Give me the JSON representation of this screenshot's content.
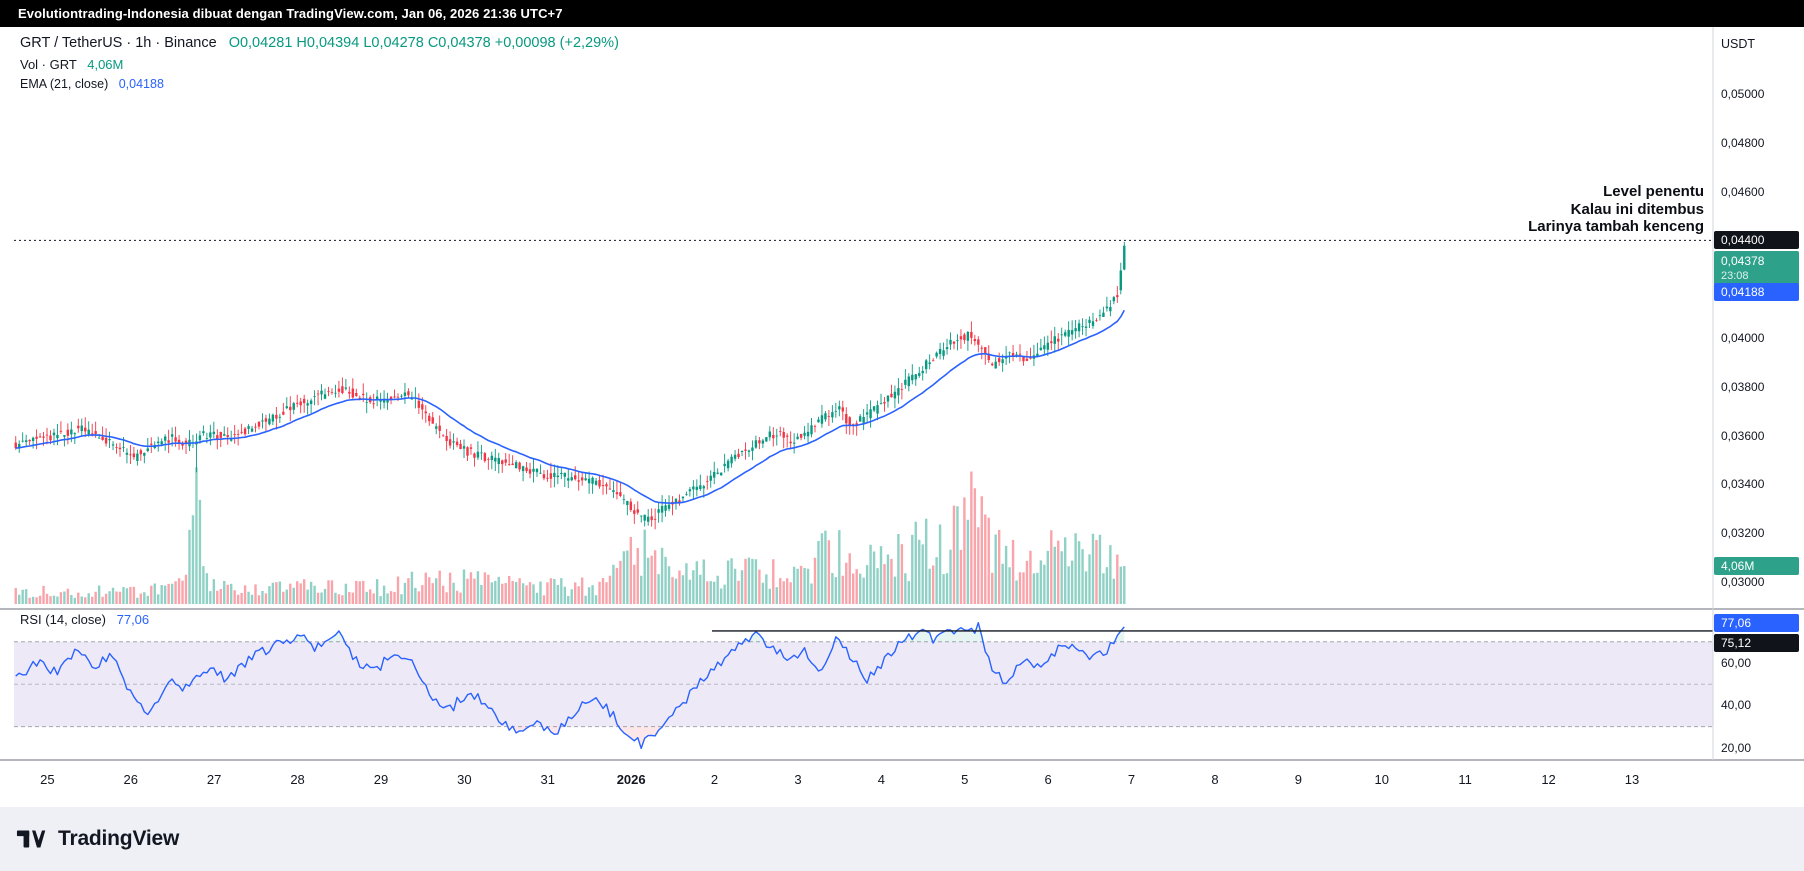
{
  "top_bar": {
    "text": "Evolutiontrading-Indonesia dibuat dengan TradingView.com, Jan 06, 2026 21:36 UTC+7"
  },
  "legend": {
    "symbol": "GRT / TetherUS · 1h · Binance",
    "ohlc": "O0,04281  H0,04394  L0,04278  C0,04378  +0,00098 (+2,29%)",
    "volume_label": "Vol · GRT",
    "volume_value": "4,06M",
    "ema_label": "EMA (21, close)",
    "ema_value": "0,04188"
  },
  "annotation": {
    "lines": [
      "Level penentu",
      "Kalau ini ditembus",
      "Larinya tambah kenceng"
    ]
  },
  "price_axis": {
    "unit": "USDT",
    "labels": [
      {
        "text": "0,05000",
        "value": 0.05
      },
      {
        "text": "0,04800",
        "value": 0.048
      },
      {
        "text": "0,04600",
        "value": 0.046
      },
      {
        "text": "0,04000",
        "value": 0.04
      },
      {
        "text": "0,03800",
        "value": 0.038
      },
      {
        "text": "0,03600",
        "value": 0.036
      },
      {
        "text": "0,03400",
        "value": 0.034
      },
      {
        "text": "0,03200",
        "value": 0.032
      },
      {
        "text": "0,03000",
        "value": 0.03
      }
    ],
    "badges": {
      "level": {
        "text": "0,04400",
        "bg": "#10131a"
      },
      "last": {
        "text": "0,04378",
        "time": "23:08",
        "bg": "#2da18a"
      },
      "ema": {
        "text": "0,04188",
        "bg": "#2962ff"
      },
      "volume": {
        "text": "4,06M",
        "bg": "#2da18a"
      }
    }
  },
  "rsi": {
    "label": "RSI (14, close)",
    "value_text": "77,06",
    "axis_labels": [
      {
        "text": "60,00",
        "value": 60
      },
      {
        "text": "40,00",
        "value": 40
      },
      {
        "text": "20,00",
        "value": 20
      }
    ],
    "badges": {
      "value": {
        "text": "77,06",
        "bg": "#2962ff"
      },
      "level": {
        "text": "75,12",
        "bg": "#10131a"
      }
    }
  },
  "time_axis": {
    "labels": [
      {
        "text": "25"
      },
      {
        "text": "26"
      },
      {
        "text": "27"
      },
      {
        "text": "28"
      },
      {
        "text": "29"
      },
      {
        "text": "30"
      },
      {
        "text": "31"
      },
      {
        "text": "2026",
        "bold": true
      },
      {
        "text": "2"
      },
      {
        "text": "3"
      },
      {
        "text": "4"
      },
      {
        "text": "5"
      },
      {
        "text": "6"
      },
      {
        "text": "7"
      },
      {
        "text": "8"
      },
      {
        "text": "9"
      },
      {
        "text": "10"
      },
      {
        "text": "11"
      },
      {
        "text": "12"
      },
      {
        "text": "13"
      }
    ]
  },
  "footer": {
    "brand": "TradingView"
  },
  "chart_data": {
    "type": "candlestick",
    "symbol": "GRT/USDT",
    "exchange": "Binance",
    "interval": "1h",
    "price_axis_range": [
      0.0293,
      0.0506
    ],
    "rsi_axis_range": [
      15,
      85
    ],
    "horizontal_level": 0.044,
    "last_candle": {
      "open": 0.04281,
      "high": 0.04394,
      "low": 0.04278,
      "close": 0.04378,
      "change_abs": 0.00098,
      "change_pct": 2.29,
      "time_label": "23:08"
    },
    "ema": {
      "length": 21,
      "source": "close",
      "last": 0.04188
    },
    "volume": {
      "last": "4,06M",
      "up_color": "#089981",
      "down_color": "#f23645"
    },
    "rsi": {
      "length": 14,
      "source": "close",
      "last": 77.06,
      "band": [
        30,
        70
      ],
      "level_line": 75.12
    },
    "days_span": 13.33,
    "candles_per_day": 24,
    "wick_events": [
      {
        "t": 2.17,
        "low": 0.0345
      }
    ],
    "price_anchors": [
      [
        0,
        0.0356
      ],
      [
        0.4,
        0.0359
      ],
      [
        0.8,
        0.0363
      ],
      [
        1.0,
        0.036
      ],
      [
        1.2,
        0.0357
      ],
      [
        1.45,
        0.0351
      ],
      [
        1.65,
        0.0356
      ],
      [
        1.9,
        0.0359
      ],
      [
        2.1,
        0.0357
      ],
      [
        2.35,
        0.0361
      ],
      [
        2.6,
        0.0359
      ],
      [
        2.9,
        0.0364
      ],
      [
        3.2,
        0.0369
      ],
      [
        3.5,
        0.0374
      ],
      [
        3.8,
        0.0378
      ],
      [
        4.0,
        0.0379
      ],
      [
        4.2,
        0.0375
      ],
      [
        4.45,
        0.0374
      ],
      [
        4.65,
        0.0378
      ],
      [
        4.85,
        0.0374
      ],
      [
        5.05,
        0.0364
      ],
      [
        5.3,
        0.0356
      ],
      [
        5.55,
        0.0352
      ],
      [
        5.8,
        0.035
      ],
      [
        6.1,
        0.0347
      ],
      [
        6.4,
        0.0344
      ],
      [
        6.7,
        0.0343
      ],
      [
        7.0,
        0.0341
      ],
      [
        7.25,
        0.0336
      ],
      [
        7.5,
        0.0327
      ],
      [
        7.65,
        0.0326
      ],
      [
        7.85,
        0.0331
      ],
      [
        8.1,
        0.0336
      ],
      [
        8.4,
        0.0343
      ],
      [
        8.7,
        0.0352
      ],
      [
        8.95,
        0.0358
      ],
      [
        9.15,
        0.0361
      ],
      [
        9.35,
        0.0358
      ],
      [
        9.55,
        0.0362
      ],
      [
        9.75,
        0.0368
      ],
      [
        9.9,
        0.0372
      ],
      [
        10.05,
        0.0364
      ],
      [
        10.25,
        0.0368
      ],
      [
        10.45,
        0.0374
      ],
      [
        10.65,
        0.038
      ],
      [
        10.85,
        0.0386
      ],
      [
        11.05,
        0.0392
      ],
      [
        11.25,
        0.0398
      ],
      [
        11.45,
        0.0401
      ],
      [
        11.6,
        0.0396
      ],
      [
        11.75,
        0.0389
      ],
      [
        11.95,
        0.0394
      ],
      [
        12.15,
        0.0391
      ],
      [
        12.35,
        0.0396
      ],
      [
        12.55,
        0.04
      ],
      [
        12.75,
        0.0404
      ],
      [
        12.95,
        0.0407
      ],
      [
        13.1,
        0.0411
      ],
      [
        13.25,
        0.0418
      ],
      [
        13.33,
        0.0438
      ]
    ],
    "volume_anchors": [
      [
        0,
        0.1
      ],
      [
        0.6,
        0.08
      ],
      [
        1.2,
        0.09
      ],
      [
        1.8,
        0.1
      ],
      [
        2.05,
        0.14
      ],
      [
        2.17,
        1.0
      ],
      [
        2.3,
        0.13
      ],
      [
        2.7,
        0.09
      ],
      [
        3.1,
        0.11
      ],
      [
        3.5,
        0.13
      ],
      [
        3.9,
        0.11
      ],
      [
        4.3,
        0.12
      ],
      [
        4.7,
        0.15
      ],
      [
        5.1,
        0.17
      ],
      [
        5.5,
        0.16
      ],
      [
        5.9,
        0.13
      ],
      [
        6.3,
        0.12
      ],
      [
        6.7,
        0.12
      ],
      [
        7.1,
        0.14
      ],
      [
        7.5,
        0.42
      ],
      [
        7.7,
        0.3
      ],
      [
        8.0,
        0.2
      ],
      [
        8.4,
        0.22
      ],
      [
        8.8,
        0.24
      ],
      [
        9.2,
        0.2
      ],
      [
        9.6,
        0.3
      ],
      [
        9.85,
        0.4
      ],
      [
        10.1,
        0.26
      ],
      [
        10.4,
        0.3
      ],
      [
        10.7,
        0.36
      ],
      [
        11.0,
        0.48
      ],
      [
        11.2,
        0.42
      ],
      [
        11.45,
        0.62
      ],
      [
        11.65,
        0.44
      ],
      [
        11.85,
        0.32
      ],
      [
        12.05,
        0.38
      ],
      [
        12.3,
        0.3
      ],
      [
        12.55,
        0.45
      ],
      [
        12.8,
        0.32
      ],
      [
        13.0,
        0.36
      ],
      [
        13.15,
        0.26
      ],
      [
        13.33,
        0.27
      ]
    ],
    "rsi_anchors": [
      [
        0,
        52
      ],
      [
        0.25,
        60
      ],
      [
        0.5,
        55
      ],
      [
        0.75,
        66
      ],
      [
        0.95,
        59
      ],
      [
        1.15,
        64
      ],
      [
        1.4,
        44
      ],
      [
        1.6,
        37
      ],
      [
        1.85,
        53
      ],
      [
        2.05,
        48
      ],
      [
        2.3,
        58
      ],
      [
        2.55,
        52
      ],
      [
        2.8,
        62
      ],
      [
        3.1,
        68
      ],
      [
        3.4,
        73
      ],
      [
        3.6,
        67
      ],
      [
        3.85,
        74
      ],
      [
        4.1,
        61
      ],
      [
        4.3,
        56
      ],
      [
        4.55,
        65
      ],
      [
        4.8,
        58
      ],
      [
        5.0,
        44
      ],
      [
        5.2,
        38
      ],
      [
        5.45,
        47
      ],
      [
        5.65,
        40
      ],
      [
        5.85,
        32
      ],
      [
        6.05,
        26
      ],
      [
        6.25,
        31
      ],
      [
        6.45,
        27
      ],
      [
        6.7,
        36
      ],
      [
        6.9,
        43
      ],
      [
        7.1,
        38
      ],
      [
        7.3,
        29
      ],
      [
        7.5,
        21
      ],
      [
        7.7,
        27
      ],
      [
        7.9,
        36
      ],
      [
        8.1,
        46
      ],
      [
        8.35,
        57
      ],
      [
        8.6,
        66
      ],
      [
        8.85,
        73
      ],
      [
        9.05,
        69
      ],
      [
        9.25,
        61
      ],
      [
        9.45,
        67
      ],
      [
        9.65,
        57
      ],
      [
        9.85,
        73
      ],
      [
        10.0,
        64
      ],
      [
        10.2,
        51
      ],
      [
        10.4,
        60
      ],
      [
        10.6,
        69
      ],
      [
        10.8,
        75
      ],
      [
        11.0,
        71
      ],
      [
        11.2,
        77
      ],
      [
        11.4,
        73
      ],
      [
        11.55,
        78
      ],
      [
        11.7,
        57
      ],
      [
        11.9,
        51
      ],
      [
        12.1,
        62
      ],
      [
        12.3,
        57
      ],
      [
        12.5,
        66
      ],
      [
        12.7,
        69
      ],
      [
        12.9,
        63
      ],
      [
        13.1,
        66
      ],
      [
        13.33,
        77.06
      ]
    ]
  }
}
